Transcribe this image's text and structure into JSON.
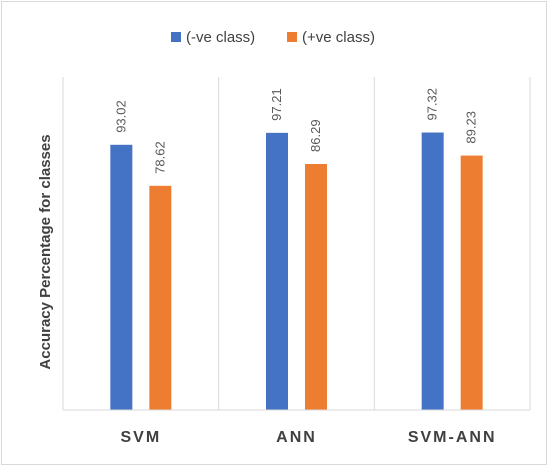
{
  "chart_data": {
    "type": "bar",
    "categories": [
      "SVM",
      "ANN",
      "SVM-ANN"
    ],
    "series": [
      {
        "name": "(-ve class)",
        "values": [
          93.02,
          97.21,
          97.32
        ],
        "color": "#4472C4"
      },
      {
        "name": "(+ve class)",
        "values": [
          78.62,
          86.29,
          89.23
        ],
        "color": "#ED7D31"
      }
    ],
    "ylabel": "Accuracy  Percentage for classes",
    "ylim": [
      0,
      141
    ],
    "grid": false,
    "category_separators": true,
    "legend_position": "top",
    "data_labels": true
  }
}
